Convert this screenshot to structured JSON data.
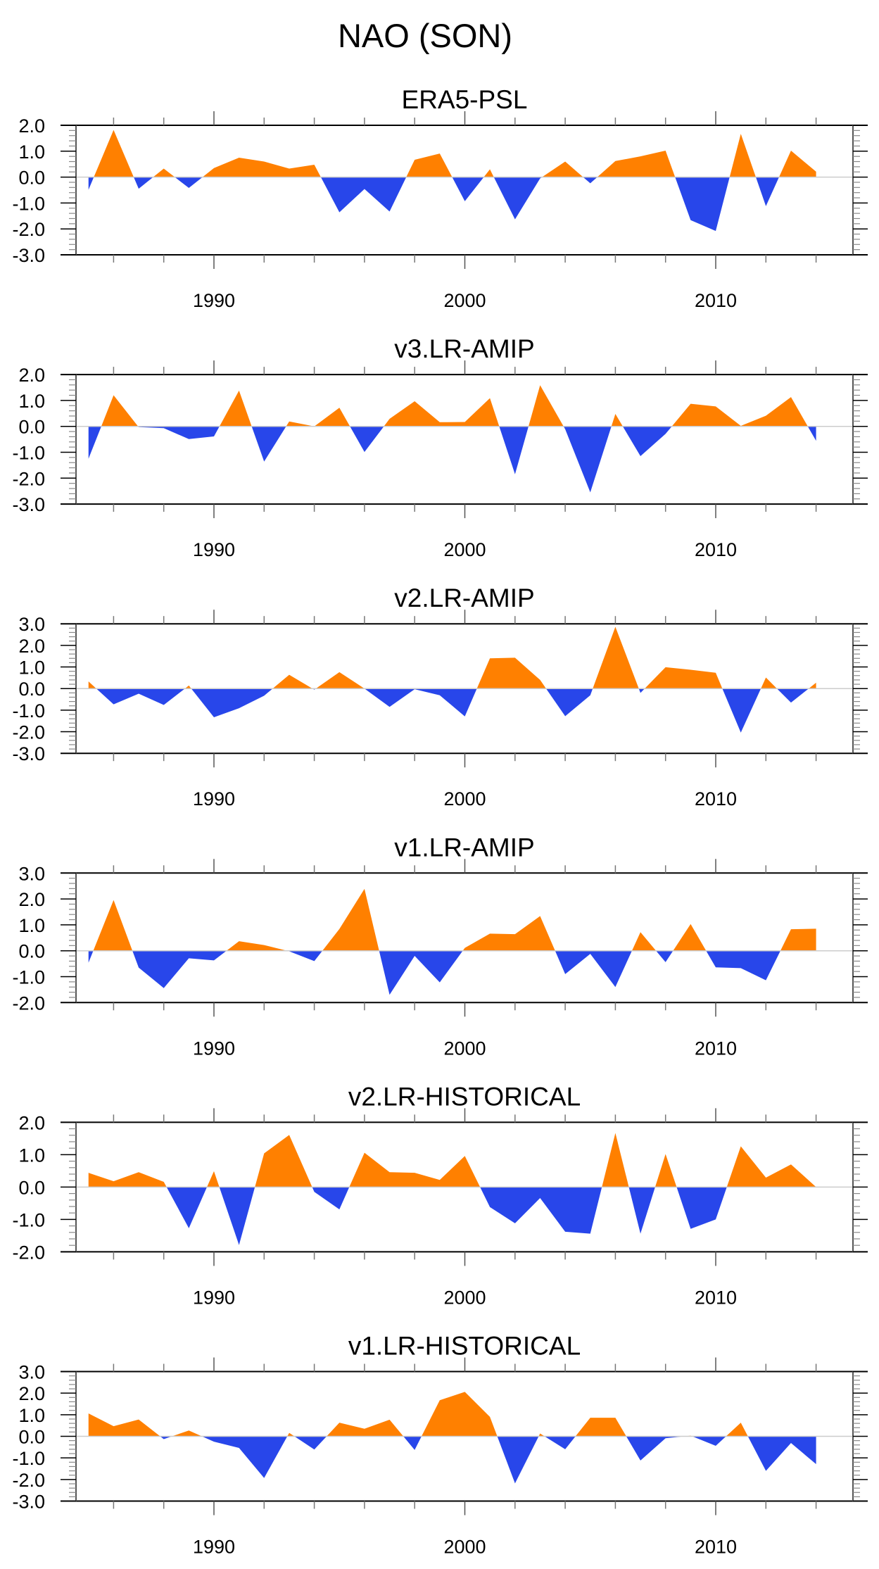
{
  "chart_data": {
    "type": "area",
    "title": "NAO (SON)",
    "x": [
      1985,
      1986,
      1987,
      1988,
      1989,
      1990,
      1991,
      1992,
      1993,
      1994,
      1995,
      1996,
      1997,
      1998,
      1999,
      2000,
      2001,
      2002,
      2003,
      2004,
      2005,
      2006,
      2007,
      2008,
      2009,
      2010,
      2011,
      2012,
      2013,
      2014
    ],
    "xlim": [
      1983.5,
      2016
    ],
    "x_tick_labels": [
      "1990",
      "2000",
      "2010"
    ],
    "x_tick_values": [
      1990,
      2000,
      2010
    ],
    "positive_color": "#ff8000",
    "negative_color": "#2846ea",
    "zero_line_color": "#cccccc",
    "grid": false,
    "legend": "none",
    "panels": [
      {
        "title": "ERA5-PSL",
        "ylim": [
          -3.0,
          2.0
        ],
        "y_tick_labels": [
          "2.0",
          "1.0",
          "0.0",
          "-1.0",
          "-2.0",
          "-3.0"
        ],
        "y_tick_values": [
          2,
          1,
          0,
          -1,
          -2,
          -3
        ],
        "values": [
          -0.49,
          1.82,
          -0.45,
          0.33,
          -0.42,
          0.35,
          0.75,
          0.6,
          0.33,
          0.48,
          -1.36,
          -0.46,
          -1.33,
          0.67,
          0.91,
          -0.93,
          0.3,
          -1.63,
          -0.05,
          0.6,
          -0.24,
          0.62,
          0.8,
          1.02,
          -1.66,
          -2.08,
          1.67,
          -1.12,
          1.02,
          0.21
        ]
      },
      {
        "title": "v3.LR-AMIP",
        "ylim": [
          -3.0,
          2.0
        ],
        "y_tick_labels": [
          "2.0",
          "1.0",
          "0.0",
          "-1.0",
          "-2.0",
          "-3.0"
        ],
        "y_tick_values": [
          2,
          1,
          0,
          -1,
          -2,
          -3
        ],
        "values": [
          -1.25,
          1.2,
          -0.03,
          -0.07,
          -0.49,
          -0.39,
          1.38,
          -1.36,
          0.19,
          0.0,
          0.72,
          -0.99,
          0.29,
          0.97,
          0.16,
          0.17,
          1.09,
          -1.85,
          1.59,
          -0.11,
          -2.55,
          0.48,
          -1.15,
          -0.29,
          0.87,
          0.77,
          0.02,
          0.41,
          1.13,
          -0.56
        ]
      },
      {
        "title": "v2.LR-AMIP",
        "ylim": [
          -3.0,
          3.0
        ],
        "y_tick_labels": [
          "3.0",
          "2.0",
          "1.0",
          "0.0",
          "-1.0",
          "-2.0",
          "-3.0"
        ],
        "y_tick_values": [
          3,
          2,
          1,
          0,
          -1,
          -2,
          -3
        ],
        "values": [
          0.33,
          -0.73,
          -0.24,
          -0.76,
          0.14,
          -1.33,
          -0.91,
          -0.33,
          0.64,
          -0.05,
          0.76,
          0.0,
          -0.85,
          -0.03,
          -0.31,
          -1.29,
          1.4,
          1.43,
          0.4,
          -1.28,
          -0.31,
          2.86,
          -0.2,
          0.99,
          0.87,
          0.73,
          -2.04,
          0.51,
          -0.65,
          0.27
        ]
      },
      {
        "title": "v1.LR-AMIP",
        "ylim": [
          -2.0,
          3.0
        ],
        "y_tick_labels": [
          "3.0",
          "2.0",
          "1.0",
          "0.0",
          "-1.0",
          "-2.0"
        ],
        "y_tick_values": [
          3,
          2,
          1,
          0,
          -1,
          -2
        ],
        "values": [
          -0.46,
          1.96,
          -0.65,
          -1.44,
          -0.29,
          -0.37,
          0.37,
          0.22,
          -0.02,
          -0.4,
          0.84,
          2.39,
          -1.7,
          -0.2,
          -1.22,
          0.11,
          0.66,
          0.64,
          1.34,
          -0.9,
          -0.12,
          -1.4,
          0.72,
          -0.44,
          1.03,
          -0.64,
          -0.67,
          -1.14,
          0.83,
          0.85
        ]
      },
      {
        "title": "v2.LR-HISTORICAL",
        "ylim": [
          -2.0,
          2.0
        ],
        "y_tick_labels": [
          "2.0",
          "1.0",
          "0.0",
          "-1.0",
          "-2.0"
        ],
        "y_tick_values": [
          2,
          1,
          0,
          -1,
          -2
        ],
        "values": [
          0.44,
          0.18,
          0.46,
          0.16,
          -1.27,
          0.49,
          -1.79,
          1.04,
          1.61,
          -0.15,
          -0.69,
          1.06,
          0.46,
          0.44,
          0.22,
          0.96,
          -0.62,
          -1.12,
          -0.34,
          -1.38,
          -1.44,
          1.67,
          -1.44,
          1.02,
          -1.29,
          -1.0,
          1.26,
          0.29,
          0.7,
          0.0
        ]
      },
      {
        "title": "v1.LR-HISTORICAL",
        "ylim": [
          -3.0,
          3.0
        ],
        "y_tick_labels": [
          "3.0",
          "2.0",
          "1.0",
          "0.0",
          "-1.0",
          "-2.0",
          "-3.0"
        ],
        "y_tick_values": [
          3,
          2,
          1,
          0,
          -1,
          -2,
          -3
        ],
        "values": [
          1.06,
          0.47,
          0.78,
          -0.13,
          0.27,
          -0.25,
          -0.54,
          -1.93,
          0.16,
          -0.61,
          0.63,
          0.35,
          0.77,
          -0.63,
          1.67,
          2.06,
          0.9,
          -2.18,
          0.13,
          -0.6,
          0.86,
          0.86,
          -1.12,
          -0.09,
          0.03,
          -0.44,
          0.63,
          -1.6,
          -0.31,
          -1.29
        ]
      }
    ]
  }
}
